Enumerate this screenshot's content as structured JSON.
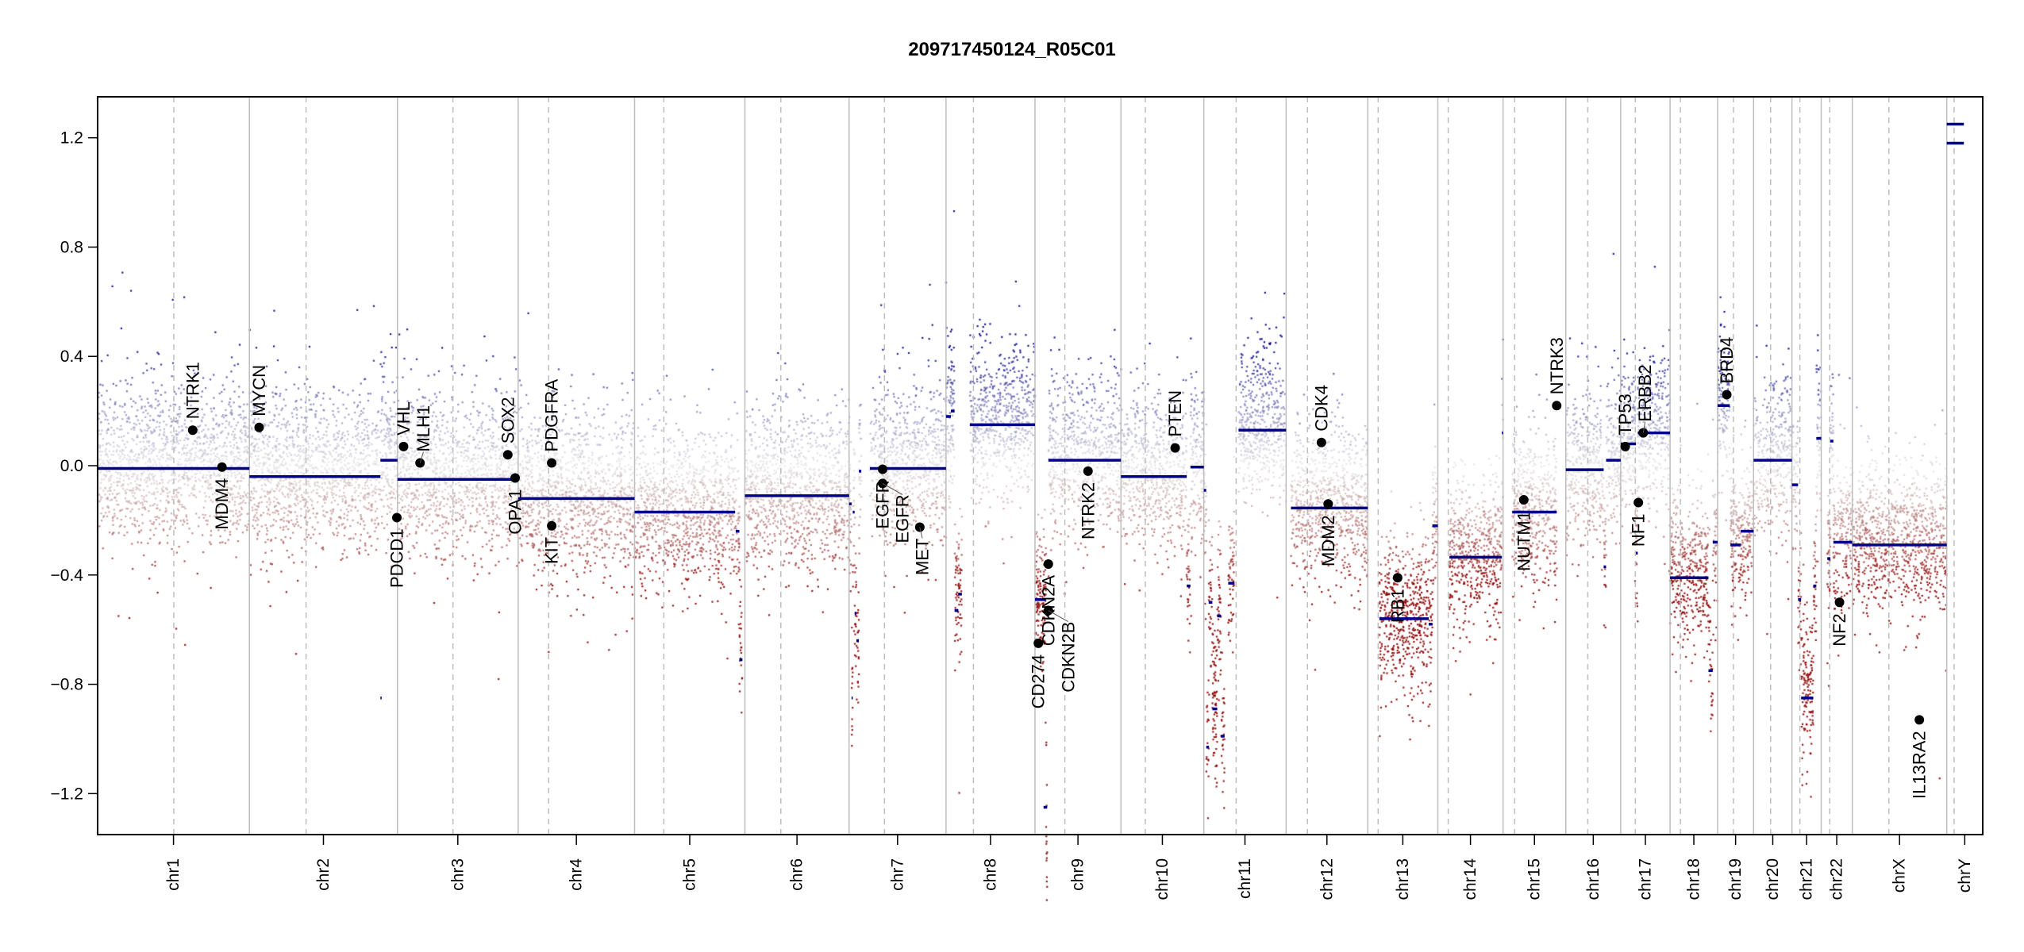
{
  "chart_data": {
    "type": "scatter",
    "title": "209717450124_R05C01",
    "xlabel": "",
    "ylabel": "",
    "ylim": [
      -1.35,
      1.35
    ],
    "yticks": [
      "-1.2",
      "-0.8",
      "-0.4",
      "0.0",
      "0.4",
      "0.8",
      "1.2"
    ],
    "grid": false,
    "colors": {
      "segment": "#00008B",
      "gain": "#00008B",
      "loss": "#8B0000",
      "neutral": "#D3D3D3",
      "boundary": "#BEBEBE"
    },
    "chromosomes": [
      {
        "name": "chr1",
        "length": 249,
        "centromere": 125
      },
      {
        "name": "chr2",
        "length": 243,
        "centromere": 93
      },
      {
        "name": "chr3",
        "length": 198,
        "centromere": 91
      },
      {
        "name": "chr4",
        "length": 191,
        "centromere": 50
      },
      {
        "name": "chr5",
        "length": 181,
        "centromere": 48
      },
      {
        "name": "chr6",
        "length": 171,
        "centromere": 59
      },
      {
        "name": "chr7",
        "length": 159,
        "centromere": 58
      },
      {
        "name": "chr8",
        "length": 146,
        "centromere": 45
      },
      {
        "name": "chr9",
        "length": 141,
        "centromere": 49
      },
      {
        "name": "chr10",
        "length": 136,
        "centromere": 40
      },
      {
        "name": "chr11",
        "length": 135,
        "centromere": 53
      },
      {
        "name": "chr12",
        "length": 134,
        "centromere": 35
      },
      {
        "name": "chr13",
        "length": 115,
        "centromere": 17
      },
      {
        "name": "chr14",
        "length": 107,
        "centromere": 17
      },
      {
        "name": "chr15",
        "length": 103,
        "centromere": 19
      },
      {
        "name": "chr16",
        "length": 90,
        "centromere": 36
      },
      {
        "name": "chr17",
        "length": 81,
        "centromere": 24
      },
      {
        "name": "chr18",
        "length": 78,
        "centromere": 17
      },
      {
        "name": "chr19",
        "length": 59,
        "centromere": 26
      },
      {
        "name": "chr20",
        "length": 63,
        "centromere": 28
      },
      {
        "name": "chr21",
        "length": 48,
        "centromere": 13
      },
      {
        "name": "chr22",
        "length": 51,
        "centromere": 14
      },
      {
        "name": "chrX",
        "length": 155,
        "centromere": 60
      },
      {
        "name": "chrY",
        "length": 59,
        "centromere": 12
      }
    ],
    "segments": [
      [
        "chr1",
        0,
        249,
        -0.01
      ],
      [
        "chr2",
        0,
        215,
        -0.04
      ],
      [
        "chr2",
        215,
        243,
        0.02
      ],
      [
        "chr2",
        215,
        217,
        -0.85
      ],
      [
        "chr3",
        0,
        198,
        -0.05
      ],
      [
        "chr4",
        0,
        191,
        -0.12
      ],
      [
        "chr5",
        0,
        165,
        -0.17
      ],
      [
        "chr5",
        166,
        172,
        -0.24
      ],
      [
        "chr5",
        172,
        177,
        -0.71
      ],
      [
        "chr6",
        0,
        171,
        -0.11
      ],
      [
        "chr7",
        0,
        4,
        -0.14
      ],
      [
        "chr7",
        4,
        6,
        -0.85
      ],
      [
        "chr7",
        6,
        9,
        -0.17
      ],
      [
        "chr7",
        9,
        12,
        -0.54
      ],
      [
        "chr7",
        12,
        16,
        -0.64
      ],
      [
        "chr7",
        16,
        20,
        -0.02
      ],
      [
        "chr7",
        34,
        159,
        -0.01
      ],
      [
        "chr8",
        0,
        8,
        0.18
      ],
      [
        "chr8",
        8,
        14,
        0.2
      ],
      [
        "chr8",
        14,
        20,
        -0.53
      ],
      [
        "chr8",
        20,
        26,
        -0.47
      ],
      [
        "chr8",
        39,
        146,
        0.15
      ],
      [
        "chr9",
        0,
        18,
        -0.49
      ],
      [
        "chr9",
        14,
        20,
        -1.25
      ],
      [
        "chr9",
        22,
        141,
        0.02
      ],
      [
        "chr10",
        0,
        108,
        -0.04
      ],
      [
        "chr10",
        108,
        114,
        -0.44
      ],
      [
        "chr10",
        114,
        136,
        -0.005
      ],
      [
        "chr11",
        0,
        4,
        -0.09
      ],
      [
        "chr11",
        4,
        8,
        -1.03
      ],
      [
        "chr11",
        8,
        14,
        -0.5
      ],
      [
        "chr11",
        14,
        22,
        -0.89
      ],
      [
        "chr11",
        22,
        28,
        -0.55
      ],
      [
        "chr11",
        28,
        34,
        -0.99
      ],
      [
        "chr11",
        40,
        50,
        -0.43
      ],
      [
        "chr11",
        57,
        135,
        0.13
      ],
      [
        "chr12",
        8,
        134,
        -0.155
      ],
      [
        "chr13",
        19,
        100,
        -0.56
      ],
      [
        "chr13",
        100,
        106,
        -0.58
      ],
      [
        "chr13",
        106,
        115,
        -0.22
      ],
      [
        "chr14",
        19,
        105,
        -0.335
      ],
      [
        "chr14",
        105,
        107,
        0.12
      ],
      [
        "chr15",
        15,
        88,
        -0.17
      ],
      [
        "chr16",
        0,
        62,
        -0.015
      ],
      [
        "chr16",
        62,
        66,
        -0.37
      ],
      [
        "chr16",
        66,
        90,
        0.02
      ],
      [
        "chr17",
        0,
        25,
        0.08
      ],
      [
        "chr17",
        25,
        28,
        -0.32
      ],
      [
        "chr17",
        28,
        81,
        0.12
      ],
      [
        "chr18",
        0,
        63,
        -0.41
      ],
      [
        "chr18",
        63,
        70,
        -0.75
      ],
      [
        "chr18",
        70,
        78,
        -0.28
      ],
      [
        "chr19",
        0,
        20,
        0.22
      ],
      [
        "chr19",
        21,
        38,
        -0.29
      ],
      [
        "chr19",
        38,
        59,
        -0.24
      ],
      [
        "chr20",
        0,
        63,
        0.02
      ],
      [
        "chr21",
        0,
        10,
        -0.07
      ],
      [
        "chr21",
        10,
        15,
        -0.49
      ],
      [
        "chr21",
        15,
        35,
        -0.85
      ],
      [
        "chr21",
        35,
        40,
        -0.44
      ],
      [
        "chr21",
        40,
        48,
        0.1
      ],
      [
        "chr22",
        10,
        15,
        -0.34
      ],
      [
        "chr22",
        15,
        20,
        0.09
      ],
      [
        "chr22",
        20,
        51,
        -0.28
      ],
      [
        "chrX",
        0,
        155,
        -0.29
      ],
      [
        "chrY",
        0,
        28,
        1.25
      ],
      [
        "chrY",
        0,
        28,
        1.18
      ]
    ],
    "genes": [
      {
        "name": "NTRK1",
        "chr": "chr1",
        "pos": 156,
        "value": 0.13,
        "side": "above"
      },
      {
        "name": "MDM4",
        "chr": "chr1",
        "pos": 204,
        "value": -0.005,
        "side": "below"
      },
      {
        "name": "MYCN",
        "chr": "chr2",
        "pos": 16,
        "value": 0.14,
        "side": "above"
      },
      {
        "name": "PDCD1",
        "chr": "chr2",
        "pos": 242,
        "value": -0.19,
        "side": "below"
      },
      {
        "name": "VHL",
        "chr": "chr3",
        "pos": 10,
        "value": 0.07,
        "side": "above"
      },
      {
        "name": "MLH1",
        "chr": "chr3",
        "pos": 37,
        "value": 0.01,
        "side": "above"
      },
      {
        "name": "SOX2",
        "chr": "chr3",
        "pos": 181,
        "value": 0.04,
        "side": "above"
      },
      {
        "name": "OPA1",
        "chr": "chr3",
        "pos": 193,
        "value": -0.045,
        "side": "below"
      },
      {
        "name": "PDGFRA",
        "chr": "chr4",
        "pos": 55,
        "value": 0.01,
        "side": "above"
      },
      {
        "name": "KIT",
        "chr": "chr4",
        "pos": 55,
        "value": -0.22,
        "side": "below"
      },
      {
        "name": "EGFR",
        "chr": "chr7",
        "pos": 55,
        "value": -0.013,
        "side": "below"
      },
      {
        "name": "EGFR",
        "chr": "chr7",
        "pos": 55,
        "value": -0.065,
        "side": "below"
      },
      {
        "name": "MET",
        "chr": "chr7",
        "pos": 116,
        "value": -0.225,
        "side": "below"
      },
      {
        "name": "CD274",
        "chr": "chr9",
        "pos": 5.5,
        "value": -0.65,
        "side": "below"
      },
      {
        "name": "CDKN2A",
        "chr": "chr9",
        "pos": 21.9,
        "value": -0.36,
        "side": "below"
      },
      {
        "name": "CDKN2B",
        "chr": "chr9",
        "pos": 22,
        "value": -0.53,
        "side": "below"
      },
      {
        "name": "NTRK2",
        "chr": "chr9",
        "pos": 87,
        "value": -0.02,
        "side": "below"
      },
      {
        "name": "PTEN",
        "chr": "chr10",
        "pos": 89,
        "value": 0.065,
        "side": "above"
      },
      {
        "name": "CDK4",
        "chr": "chr12",
        "pos": 58,
        "value": 0.085,
        "side": "above"
      },
      {
        "name": "MDM2",
        "chr": "chr12",
        "pos": 69,
        "value": -0.14,
        "side": "below"
      },
      {
        "name": "RB1",
        "chr": "chr13",
        "pos": 49,
        "value": -0.41,
        "side": "below"
      },
      {
        "name": "NUTM1",
        "chr": "chr15",
        "pos": 34,
        "value": -0.125,
        "side": "below"
      },
      {
        "name": "NTRK3",
        "chr": "chr15",
        "pos": 88,
        "value": 0.22,
        "side": "above"
      },
      {
        "name": "TP53",
        "chr": "chr17",
        "pos": 7.5,
        "value": 0.07,
        "side": "above"
      },
      {
        "name": "NF1",
        "chr": "chr17",
        "pos": 29,
        "value": -0.135,
        "side": "below"
      },
      {
        "name": "ERBB2",
        "chr": "chr17",
        "pos": 37,
        "value": 0.12,
        "side": "above"
      },
      {
        "name": "BRD4",
        "chr": "chr19",
        "pos": 15,
        "value": 0.26,
        "side": "above"
      },
      {
        "name": "NF2",
        "chr": "chr22",
        "pos": 30,
        "value": -0.5,
        "side": "below"
      },
      {
        "name": "IL13RA2",
        "chr": "chrX",
        "pos": 110,
        "value": -0.93,
        "side": "below"
      }
    ]
  }
}
